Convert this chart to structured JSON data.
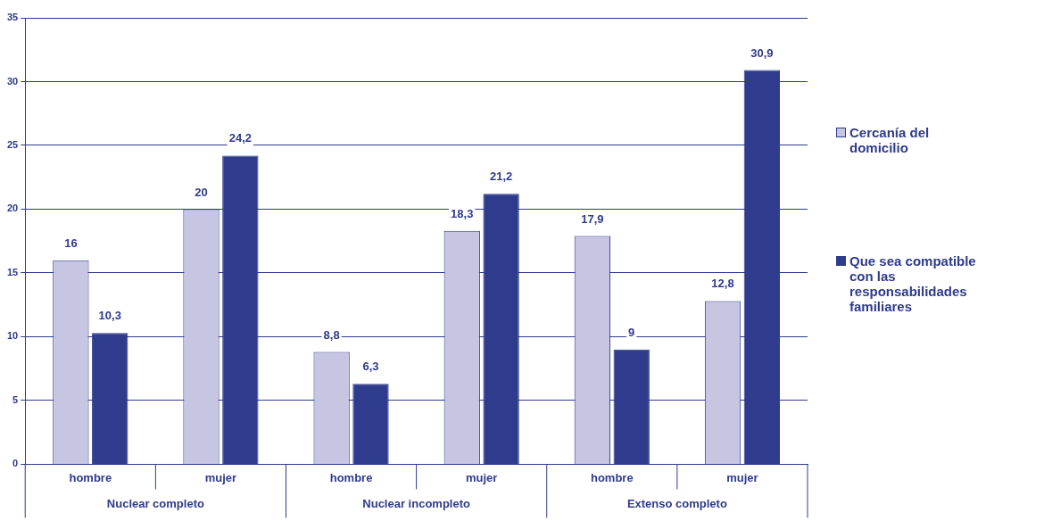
{
  "chart_data": {
    "type": "bar",
    "categories": [
      "hombre",
      "mujer",
      "hombre",
      "mujer",
      "hombre",
      "mujer"
    ],
    "series": [
      {
        "name": "Cercanía del domicilio",
        "color": "#c6c6e2",
        "values": [
          16,
          20,
          8.8,
          18.3,
          17.9,
          12.8
        ],
        "value_labels": [
          "16",
          "20",
          "8,8",
          "18,3",
          "17,9",
          "12,8"
        ]
      },
      {
        "name": "Que sea compatible con las responsabilidades familiares",
        "color": "#2f3b8c",
        "values": [
          10.3,
          24.2,
          6.3,
          21.2,
          9,
          30.9
        ],
        "value_labels": [
          "10,3",
          "24,2",
          "6,3",
          "21,2",
          "9",
          "30,9"
        ]
      }
    ],
    "annotations": [
      "Nuclear completo",
      "Nuclear incompleto",
      "Extenso completo"
    ],
    "ylim": [
      0,
      35
    ],
    "yticks": [
      0,
      5,
      10,
      15,
      20,
      25,
      30,
      35
    ],
    "grid": "y",
    "legend": "right"
  }
}
